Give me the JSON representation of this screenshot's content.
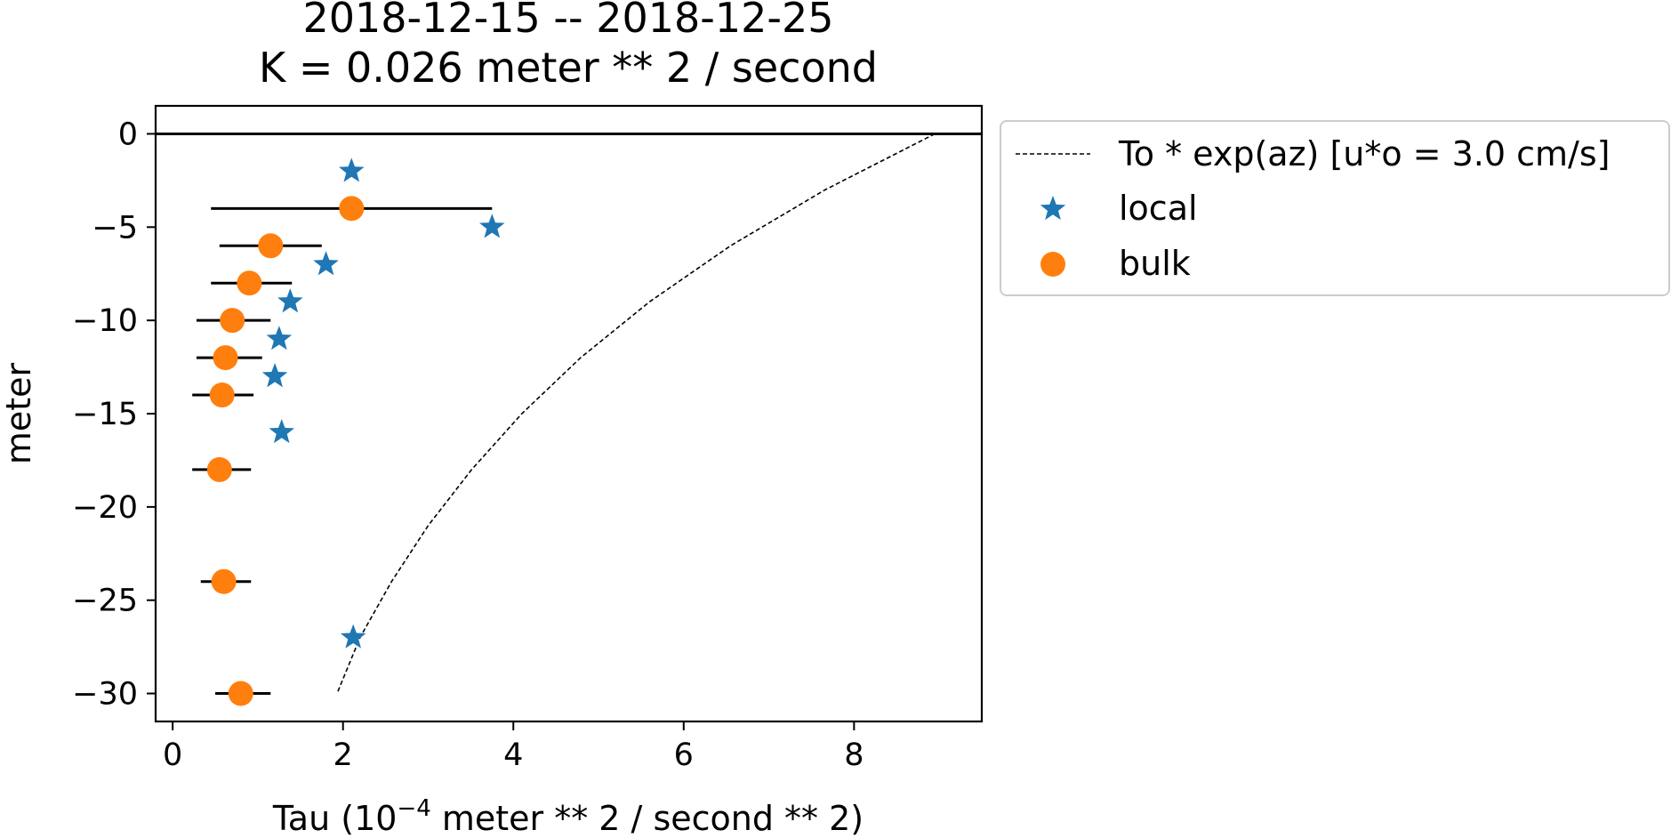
{
  "chart_data": {
    "type": "scatter",
    "title": [
      "2018-12-15 --  2018-12-25",
      "K = 0.026 meter ** 2 / second"
    ],
    "xlabel": {
      "prefix": "Tau (10",
      "sup": "−4",
      "suffix": " meter ** 2 / second ** 2)"
    },
    "ylabel": "meter",
    "xlim": [
      -0.2,
      9.5
    ],
    "ylim": [
      -31.5,
      1.5
    ],
    "xticks": [
      0,
      2,
      4,
      6,
      8
    ],
    "xtick_labels": [
      "0",
      "2",
      "4",
      "6",
      "8"
    ],
    "yticks": [
      0,
      -5,
      -10,
      -15,
      -20,
      -25,
      -30
    ],
    "ytick_labels": [
      "0",
      "−5",
      "−10",
      "−15",
      "−20",
      "−25",
      "−30"
    ],
    "hline_y": 0,
    "legend": {
      "placement": "outside-right-top",
      "entries": [
        "To * exp(az) [u*o = 3.0 cm/s]",
        "local",
        "bulk"
      ]
    },
    "series": [
      {
        "name": "To * exp(az) [u*o = 3.0 cm/s]",
        "kind": "dashed-line",
        "color": "#000000",
        "x": [
          8.95,
          7.66,
          6.55,
          5.6,
          4.79,
          4.1,
          3.51,
          3.0,
          2.57,
          2.2,
          1.93
        ],
        "y": [
          0,
          -3,
          -6,
          -9,
          -12,
          -15,
          -18,
          -21,
          -24,
          -27,
          -30
        ]
      },
      {
        "name": "local",
        "kind": "star",
        "color": "#1f77b4",
        "x": [
          2.1,
          3.75,
          1.8,
          1.38,
          1.25,
          1.2,
          1.28,
          2.12
        ],
        "y": [
          -2,
          -5,
          -7,
          -9,
          -11,
          -13,
          -16,
          -27
        ]
      },
      {
        "name": "bulk",
        "kind": "circle",
        "color": "#ff7f0e",
        "x": [
          2.1,
          1.15,
          0.9,
          0.7,
          0.62,
          0.58,
          0.55,
          0.6,
          0.8
        ],
        "y": [
          -4,
          -6,
          -8,
          -10,
          -12,
          -14,
          -18,
          -24,
          -30
        ],
        "xerr_low": [
          0.45,
          0.55,
          0.45,
          0.28,
          0.28,
          0.23,
          0.23,
          0.33,
          0.5
        ],
        "xerr_high": [
          3.75,
          1.75,
          1.4,
          1.15,
          1.05,
          0.95,
          0.92,
          0.92,
          1.15
        ]
      }
    ]
  }
}
